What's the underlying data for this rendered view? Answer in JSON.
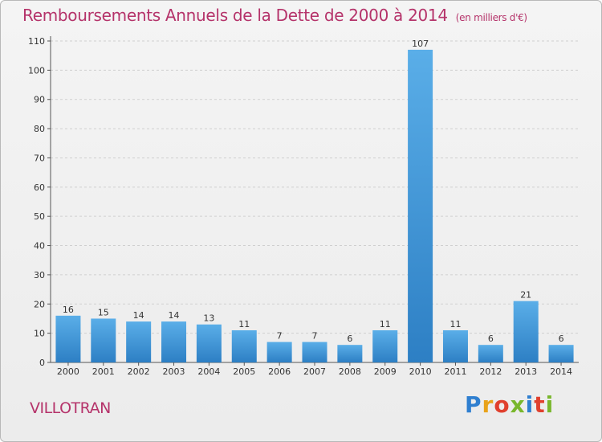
{
  "header": {
    "title": "Remboursements Annuels de la Dette de 2000 à 2014",
    "unit": "(en milliers d'€)"
  },
  "footer": {
    "commune": "VILLOTRAN",
    "logo": "Proxiti"
  },
  "colors": {
    "bar_light": "#5aaee8",
    "bar_dark": "#2d7fc4",
    "title": "#b5336a",
    "grid": "#cfcfcf"
  },
  "chart_data": {
    "type": "bar",
    "categories": [
      "2000",
      "2001",
      "2002",
      "2003",
      "2004",
      "2005",
      "2006",
      "2007",
      "2008",
      "2009",
      "2010",
      "2011",
      "2012",
      "2013",
      "2014"
    ],
    "values": [
      16,
      15,
      14,
      14,
      13,
      11,
      7,
      7,
      6,
      11,
      107,
      11,
      6,
      21,
      6
    ],
    "title": "Remboursements Annuels de la Dette de 2000 à 2014",
    "xlabel": "",
    "ylabel": "",
    "ylim": [
      0,
      110
    ],
    "yticks": [
      0,
      10,
      20,
      30,
      40,
      50,
      60,
      70,
      80,
      90,
      100,
      110
    ],
    "grid": true,
    "show_value_labels": true
  }
}
